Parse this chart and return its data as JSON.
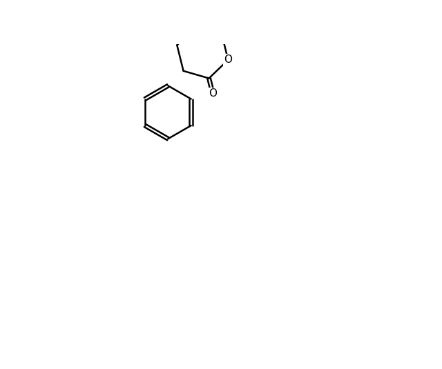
{
  "bg_color": "#ffffff",
  "line_color": "#000000",
  "figsize": [
    6.4,
    5.35
  ],
  "dpi": 100,
  "lw": 1.8,
  "font_size": 11
}
